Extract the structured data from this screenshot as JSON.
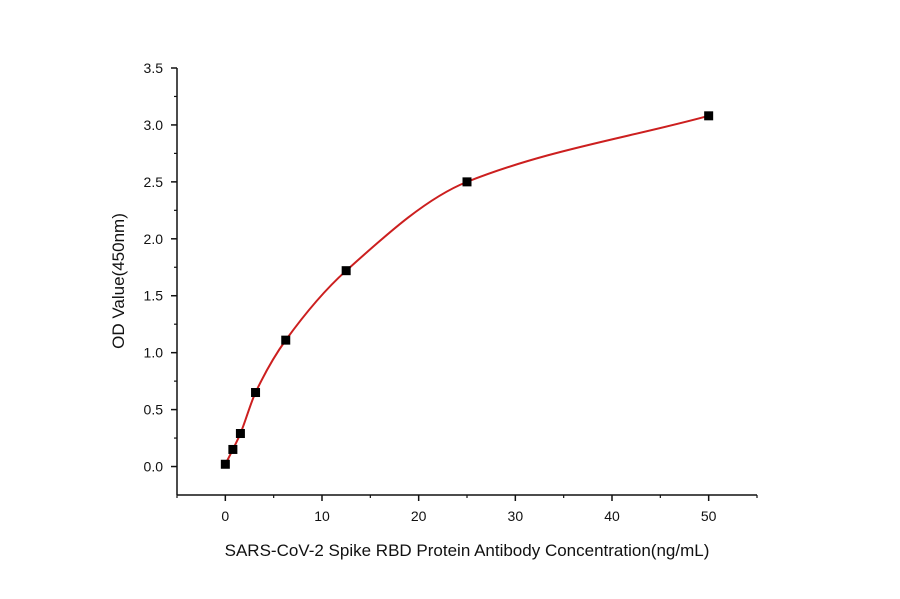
{
  "chart_data": {
    "type": "scatter",
    "title": "",
    "xlabel": "SARS-CoV-2 Spike RBD Protein Antibody Concentration(ng/mL)",
    "ylabel": "OD Value(450nm)",
    "xlim": [
      -5,
      55
    ],
    "ylim": [
      -0.25,
      3.5
    ],
    "xticks": [
      0,
      10,
      20,
      30,
      40,
      50
    ],
    "xtick_labels": [
      "0",
      "10",
      "20",
      "30",
      "40",
      "50"
    ],
    "yticks": [
      0,
      0.5,
      1,
      1.5,
      2,
      2.5,
      3,
      3.5
    ],
    "ytick_labels": [
      "0.0",
      "0.5",
      "1.0",
      "1.5",
      "2.0",
      "2.5",
      "3.0",
      "3.5"
    ],
    "grid": false,
    "legend": "none",
    "series": [
      {
        "x": [
          0,
          0.78,
          1.56,
          3.125,
          6.25,
          12.5,
          25,
          50
        ],
        "y": [
          0.02,
          0.15,
          0.29,
          0.65,
          1.11,
          1.72,
          2.5,
          3.08
        ],
        "marker": "square",
        "marker_color": "#000000",
        "fit_line_color": "#cc1f1f"
      }
    ]
  }
}
